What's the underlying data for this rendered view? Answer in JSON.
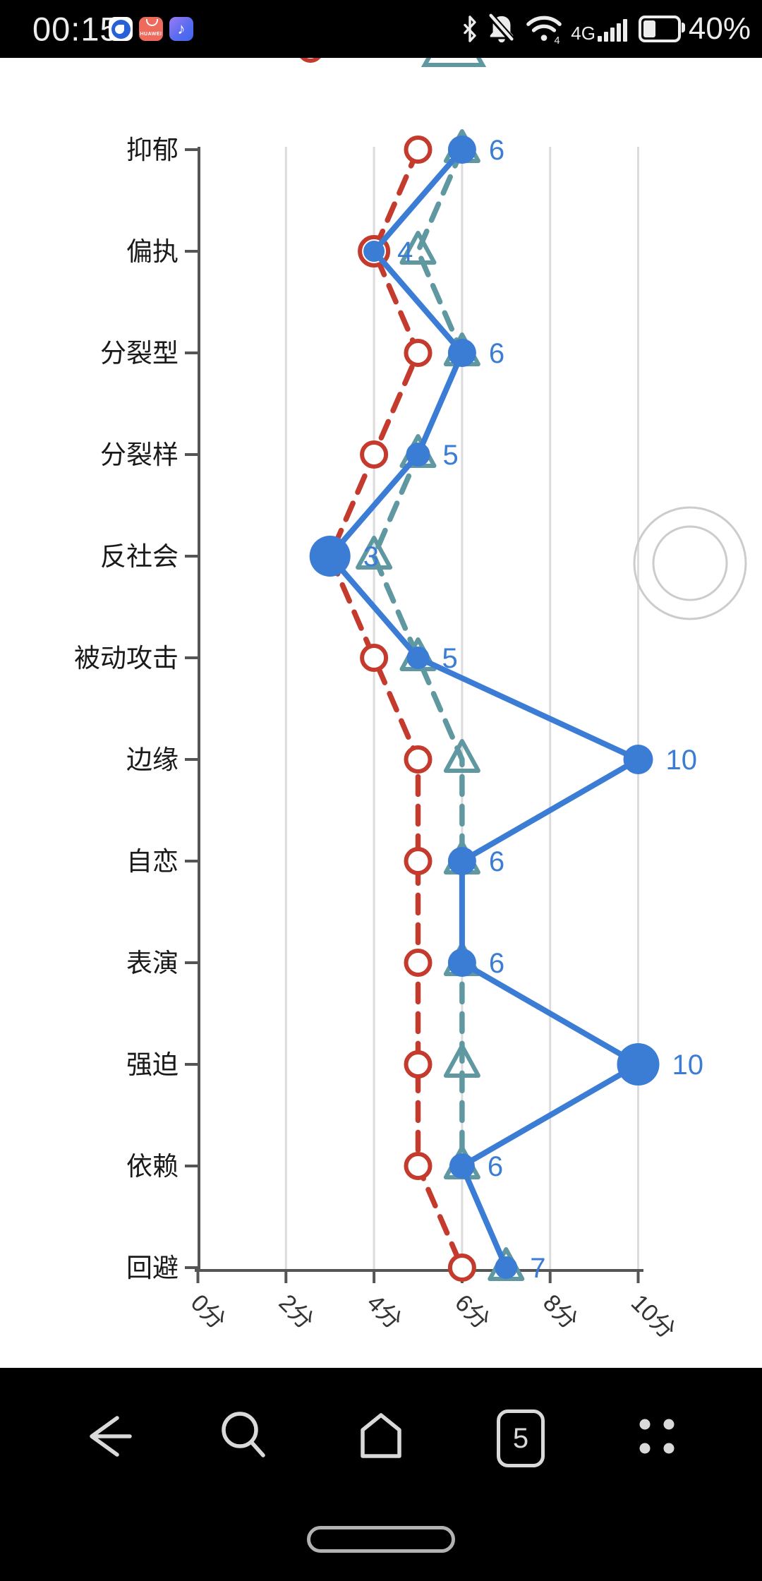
{
  "status_bar": {
    "time": "00:15",
    "appgallery_label": "HUAWEI",
    "music_note_glyph": "♪",
    "network_type": "4G",
    "wifi_badge": "4",
    "battery_text": "40%"
  },
  "chart_data": {
    "type": "line",
    "orientation": "horizontal-category",
    "categories": [
      "抑郁",
      "偏执",
      "分裂型",
      "分裂样",
      "反社会",
      "被动攻击",
      "边缘",
      "自恋",
      "表演",
      "强迫",
      "依赖",
      "回避"
    ],
    "x_ticks": [
      "0分",
      "2分",
      "4分",
      "6分",
      "8分",
      "10分"
    ],
    "x_tick_values": [
      0,
      2,
      4,
      6,
      8,
      10
    ],
    "xlim": [
      0,
      10
    ],
    "grid": true,
    "legend_position": "top (scrolled out of view, markers partially visible)",
    "series": [
      {
        "name": "red-dashed-open-circles",
        "color": "#c43a2d",
        "line": "dashed",
        "symbol": "open-circle",
        "values": [
          5,
          4,
          5,
          4,
          3,
          4,
          5,
          5,
          5,
          5,
          5,
          6
        ],
        "point_sizes": [
          17,
          20,
          17,
          17,
          17,
          17,
          17,
          17,
          17,
          17,
          17,
          17
        ]
      },
      {
        "name": "teal-dashed-open-triangles",
        "color": "#5f98a0",
        "line": "dashed",
        "symbol": "open-triangle",
        "values": [
          6,
          5,
          6,
          5,
          4,
          5,
          6,
          6,
          6,
          6,
          6,
          7
        ],
        "point_sizes": [
          23,
          23,
          23,
          23,
          23,
          23,
          23,
          23,
          23,
          23,
          23,
          23
        ]
      },
      {
        "name": "blue-solid-filled-circles",
        "color": "#3b7cd4",
        "line": "solid",
        "symbol": "filled-circle",
        "values": [
          6,
          4,
          6,
          5,
          3,
          5,
          10,
          6,
          6,
          10,
          6,
          7
        ],
        "point_sizes": [
          20,
          15,
          20,
          17,
          29,
          16,
          21,
          20,
          20,
          30,
          18,
          16
        ],
        "labels": [
          "6",
          "4",
          "6",
          "5",
          "3",
          "5",
          "10",
          "6",
          "6",
          "10",
          "6",
          "7"
        ]
      }
    ]
  },
  "nav_bar": {
    "recents_count": "5"
  }
}
